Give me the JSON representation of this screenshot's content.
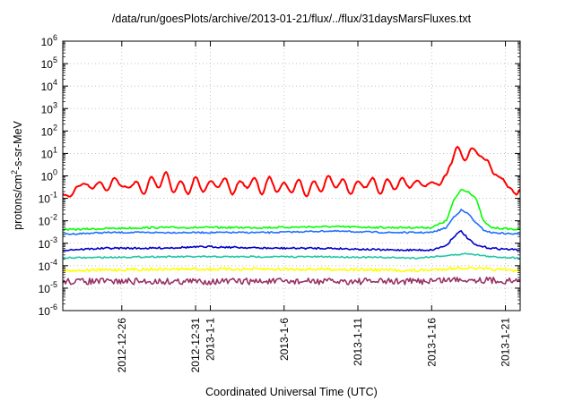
{
  "chart_data": {
    "type": "line",
    "title": "/data/run/goesPlots/archive/2013-01-21/flux/../flux/31daysMarsFluxes.txt",
    "xlabel": "Coordinated Universal Time (UTC)",
    "ylabel": "protons/cm²-s-sr-MeV",
    "ylabel_parts": {
      "base": "protons/cm",
      "sup": "2",
      "rest": "-s-sr-MeV"
    },
    "yscale": "log",
    "ylim": [
      1e-06,
      1000000.0
    ],
    "xlim": [
      "2012-12-22",
      "2013-01-22"
    ],
    "grid": true,
    "y_ticks": [
      {
        "value": 1e-06,
        "base": "10",
        "exp": "-6"
      },
      {
        "value": 1e-05,
        "base": "10",
        "exp": "-5"
      },
      {
        "value": 0.0001,
        "base": "10",
        "exp": "-4"
      },
      {
        "value": 0.001,
        "base": "10",
        "exp": "-3"
      },
      {
        "value": 0.01,
        "base": "10",
        "exp": "-2"
      },
      {
        "value": 0.1,
        "base": "10",
        "exp": "-1"
      },
      {
        "value": 1,
        "base": "10",
        "exp": "0"
      },
      {
        "value": 10.0,
        "base": "10",
        "exp": "1"
      },
      {
        "value": 100.0,
        "base": "10",
        "exp": "2"
      },
      {
        "value": 1000.0,
        "base": "10",
        "exp": "3"
      },
      {
        "value": 10000.0,
        "base": "10",
        "exp": "4"
      },
      {
        "value": 100000.0,
        "base": "10",
        "exp": "5"
      },
      {
        "value": 1000000.0,
        "base": "10",
        "exp": "6"
      }
    ],
    "x_ticks": [
      {
        "date": "2012-12-26",
        "label": "2012-12-26"
      },
      {
        "date": "2012-12-31",
        "label": "2012-12-31"
      },
      {
        "date": "2013-01-01",
        "label": "2013-1-1"
      },
      {
        "date": "2013-01-06",
        "label": "2013-1-6"
      },
      {
        "date": "2013-01-11",
        "label": "2013-1-11"
      },
      {
        "date": "2013-01-16",
        "label": "2013-1-16"
      },
      {
        "date": "2013-01-21",
        "label": "2013-1-21"
      }
    ],
    "series": [
      {
        "color": "#ff0000",
        "points": [
          [
            "2012-12-22T00:00",
            0.15
          ],
          [
            "2012-12-22T12:00",
            0.12
          ],
          [
            "2012-12-23T00:00",
            0.35
          ],
          [
            "2012-12-23T12:00",
            0.45
          ],
          [
            "2012-12-24T00:00",
            0.28
          ],
          [
            "2012-12-24T12:00",
            0.55
          ],
          [
            "2012-12-25T00:00",
            0.22
          ],
          [
            "2012-12-25T12:00",
            0.8
          ],
          [
            "2012-12-26T00:00",
            0.35
          ],
          [
            "2012-12-26T12:00",
            0.3
          ],
          [
            "2012-12-27T00:00",
            0.55
          ],
          [
            "2012-12-27T12:00",
            0.15
          ],
          [
            "2012-12-28T00:00",
            0.9
          ],
          [
            "2012-12-28T12:00",
            0.3
          ],
          [
            "2012-12-29T00:00",
            1.5
          ],
          [
            "2012-12-29T12:00",
            0.18
          ],
          [
            "2012-12-30T00:00",
            0.6
          ],
          [
            "2012-12-30T12:00",
            0.15
          ],
          [
            "2012-12-31T00:00",
            0.9
          ],
          [
            "2012-12-31T12:00",
            0.2
          ],
          [
            "2013-01-01T00:00",
            0.6
          ],
          [
            "2013-01-01T12:00",
            0.3
          ],
          [
            "2013-01-02T00:00",
            0.8
          ],
          [
            "2013-01-02T12:00",
            0.15
          ],
          [
            "2013-01-03T00:00",
            0.6
          ],
          [
            "2013-01-03T12:00",
            0.3
          ],
          [
            "2013-01-04T00:00",
            0.8
          ],
          [
            "2013-01-04T12:00",
            0.15
          ],
          [
            "2013-01-05T00:00",
            0.9
          ],
          [
            "2013-01-05T12:00",
            0.2
          ],
          [
            "2013-01-06T00:00",
            0.5
          ],
          [
            "2013-01-06T12:00",
            0.18
          ],
          [
            "2013-01-07T00:00",
            0.7
          ],
          [
            "2013-01-07T12:00",
            0.12
          ],
          [
            "2013-01-08T00:00",
            0.6
          ],
          [
            "2013-01-08T12:00",
            0.2
          ],
          [
            "2013-01-09T00:00",
            1.0
          ],
          [
            "2013-01-09T12:00",
            0.3
          ],
          [
            "2013-01-10T00:00",
            0.7
          ],
          [
            "2013-01-10T12:00",
            0.15
          ],
          [
            "2013-01-11T00:00",
            0.6
          ],
          [
            "2013-01-11T12:00",
            0.3
          ],
          [
            "2013-01-12T00:00",
            0.8
          ],
          [
            "2013-01-12T12:00",
            0.15
          ],
          [
            "2013-01-13T00:00",
            0.7
          ],
          [
            "2013-01-13T12:00",
            0.25
          ],
          [
            "2013-01-14T00:00",
            0.8
          ],
          [
            "2013-01-14T12:00",
            0.3
          ],
          [
            "2013-01-15T00:00",
            0.6
          ],
          [
            "2013-01-15T12:00",
            0.35
          ],
          [
            "2013-01-16T00:00",
            0.5
          ],
          [
            "2013-01-16T12:00",
            0.4
          ],
          [
            "2013-01-17T00:00",
            1.2
          ],
          [
            "2013-01-17T06:00",
            3.0
          ],
          [
            "2013-01-17T18:00",
            20
          ],
          [
            "2013-01-18T06:00",
            5
          ],
          [
            "2013-01-18T18:00",
            18
          ],
          [
            "2013-01-19T06:00",
            8
          ],
          [
            "2013-01-19T18:00",
            5
          ],
          [
            "2013-01-20T06:00",
            1.2
          ],
          [
            "2013-01-20T18:00",
            0.8
          ],
          [
            "2013-01-21T06:00",
            0.3
          ],
          [
            "2013-01-21T18:00",
            0.15
          ],
          [
            "2013-01-22T00:00",
            0.25
          ]
        ]
      },
      {
        "color": "#00ff00",
        "points": [
          [
            "2012-12-22T00:00",
            0.004
          ],
          [
            "2012-12-25T00:00",
            0.0045
          ],
          [
            "2012-12-28T00:00",
            0.005
          ],
          [
            "2013-01-01T00:00",
            0.005
          ],
          [
            "2013-01-05T00:00",
            0.005
          ],
          [
            "2013-01-09T00:00",
            0.0055
          ],
          [
            "2013-01-13T00:00",
            0.005
          ],
          [
            "2013-01-16T00:00",
            0.005
          ],
          [
            "2013-01-17T00:00",
            0.01
          ],
          [
            "2013-01-17T12:00",
            0.08
          ],
          [
            "2013-01-18T00:00",
            0.25
          ],
          [
            "2013-01-18T12:00",
            0.2
          ],
          [
            "2013-01-19T00:00",
            0.1
          ],
          [
            "2013-01-19T12:00",
            0.01
          ],
          [
            "2013-01-20T00:00",
            0.005
          ],
          [
            "2013-01-22T00:00",
            0.004
          ]
        ]
      },
      {
        "color": "#1e6eff",
        "points": [
          [
            "2012-12-22T00:00",
            0.0025
          ],
          [
            "2012-12-25T00:00",
            0.003
          ],
          [
            "2012-12-28T00:00",
            0.003
          ],
          [
            "2013-01-01T00:00",
            0.003
          ],
          [
            "2013-01-05T00:00",
            0.003
          ],
          [
            "2013-01-09T00:00",
            0.0035
          ],
          [
            "2013-01-13T00:00",
            0.003
          ],
          [
            "2013-01-16T00:00",
            0.003
          ],
          [
            "2013-01-17T00:00",
            0.005
          ],
          [
            "2013-01-17T12:00",
            0.015
          ],
          [
            "2013-01-18T00:00",
            0.03
          ],
          [
            "2013-01-18T12:00",
            0.02
          ],
          [
            "2013-01-19T00:00",
            0.008
          ],
          [
            "2013-01-19T12:00",
            0.004
          ],
          [
            "2013-01-20T00:00",
            0.003
          ],
          [
            "2013-01-22T00:00",
            0.0025
          ]
        ]
      },
      {
        "color": "#0000cc",
        "points": [
          [
            "2012-12-22T00:00",
            0.0005
          ],
          [
            "2012-12-25T00:00",
            0.0006
          ],
          [
            "2012-12-28T00:00",
            0.0006
          ],
          [
            "2013-01-01T00:00",
            0.0007
          ],
          [
            "2013-01-05T00:00",
            0.0006
          ],
          [
            "2013-01-09T00:00",
            0.0006
          ],
          [
            "2013-01-13T00:00",
            0.0005
          ],
          [
            "2013-01-16T00:00",
            0.0005
          ],
          [
            "2013-01-17T00:00",
            0.0008
          ],
          [
            "2013-01-17T12:00",
            0.002
          ],
          [
            "2013-01-18T00:00",
            0.0035
          ],
          [
            "2013-01-18T12:00",
            0.0015
          ],
          [
            "2013-01-19T00:00",
            0.0008
          ],
          [
            "2013-01-20T00:00",
            0.0006
          ],
          [
            "2013-01-22T00:00",
            0.0005
          ]
        ]
      },
      {
        "color": "#1fc6a4",
        "points": [
          [
            "2012-12-22T00:00",
            0.00022
          ],
          [
            "2012-12-28T00:00",
            0.00025
          ],
          [
            "2013-01-03T00:00",
            0.00025
          ],
          [
            "2013-01-09T00:00",
            0.00025
          ],
          [
            "2013-01-15T00:00",
            0.00022
          ],
          [
            "2013-01-17T12:00",
            0.0003
          ],
          [
            "2013-01-18T12:00",
            0.00035
          ],
          [
            "2013-01-20T00:00",
            0.00025
          ],
          [
            "2013-01-22T00:00",
            0.00022
          ]
        ]
      },
      {
        "color": "#ffff00",
        "points": [
          [
            "2012-12-22T00:00",
            6e-05
          ],
          [
            "2012-12-28T00:00",
            7e-05
          ],
          [
            "2013-01-03T00:00",
            7e-05
          ],
          [
            "2013-01-09T00:00",
            7e-05
          ],
          [
            "2013-01-15T00:00",
            6e-05
          ],
          [
            "2013-01-18T00:00",
            8e-05
          ],
          [
            "2013-01-22T00:00",
            6e-05
          ]
        ]
      },
      {
        "color": "#993366",
        "points": [
          [
            "2012-12-22T00:00",
            2e-05
          ],
          [
            "2012-12-28T00:00",
            2e-05
          ],
          [
            "2013-01-03T00:00",
            2e-05
          ],
          [
            "2013-01-09T00:00",
            2e-05
          ],
          [
            "2013-01-15T00:00",
            2e-05
          ],
          [
            "2013-01-18T00:00",
            2.5e-05
          ],
          [
            "2013-01-22T00:00",
            2e-05
          ]
        ]
      }
    ]
  }
}
